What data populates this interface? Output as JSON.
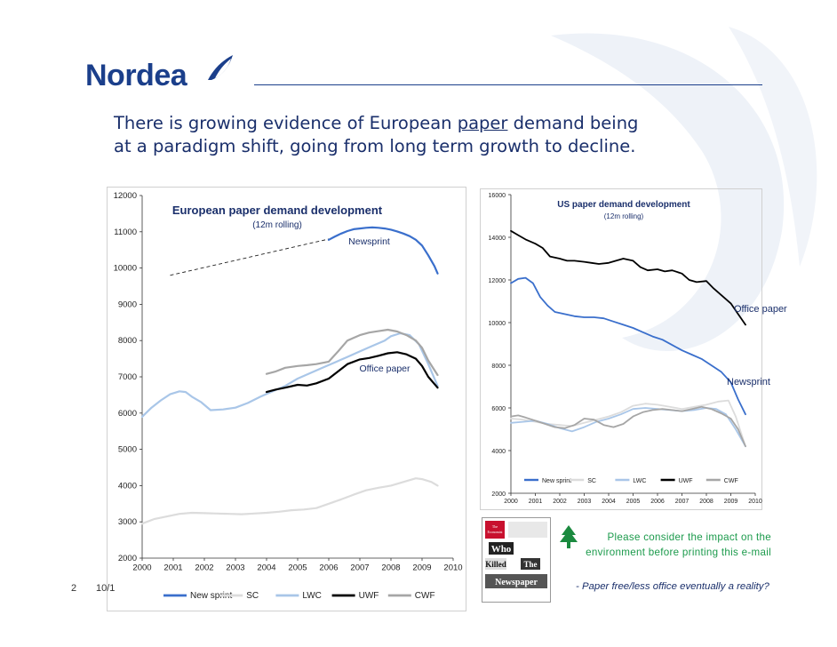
{
  "brand": {
    "name": "Nordea",
    "color": "#1b3f8b",
    "accent": "#ffffff"
  },
  "title": {
    "line1": "There is growing evidence of European ",
    "underlined": "paper",
    "line1_end": " demand being",
    "line2": "at a paradigm shift, going from long term growth to decline."
  },
  "chart_data": [
    {
      "type": "line",
      "title": "European paper demand development",
      "subtitle": "(12m rolling)",
      "xlim": [
        2000,
        2010
      ],
      "ylim": [
        2000,
        12000
      ],
      "xticks": [
        "2000",
        "2001",
        "2002",
        "2003",
        "2004",
        "2005",
        "2006",
        "2007",
        "2008",
        "2009",
        "2010"
      ],
      "yticks": [
        "2000",
        "3000",
        "4000",
        "5000",
        "6000",
        "7000",
        "8000",
        "9000",
        "10000",
        "11000",
        "12000"
      ],
      "annotations": [
        {
          "text": "Newsprint",
          "x": 2007.3,
          "y": 10650
        },
        {
          "text": "Office paper",
          "x": 2007.8,
          "y": 7150
        }
      ],
      "trend_line": {
        "x": [
          2000.9,
          2006.0
        ],
        "y": [
          9800,
          10800
        ]
      },
      "legend": [
        "New sprint",
        "SC",
        "LWC",
        "UWF",
        "CWF"
      ],
      "series": [
        {
          "name": "New sprint",
          "color": "#3a6fcc",
          "x": [
            2006.0,
            2006.2,
            2006.4,
            2006.6,
            2006.8,
            2007.0,
            2007.2,
            2007.4,
            2007.6,
            2007.8,
            2008.0,
            2008.2,
            2008.4,
            2008.6,
            2008.8,
            2009.0,
            2009.2,
            2009.4,
            2009.5
          ],
          "y": [
            10780,
            10870,
            10950,
            11020,
            11070,
            11090,
            11110,
            11120,
            11110,
            11090,
            11060,
            11010,
            10950,
            10880,
            10780,
            10620,
            10350,
            10050,
            9850
          ]
        },
        {
          "name": "SC",
          "color": "#dcdcdc",
          "x": [
            2000.0,
            2000.4,
            2000.8,
            2001.2,
            2001.6,
            2002.0,
            2002.4,
            2002.8,
            2003.2,
            2003.6,
            2004.0,
            2004.4,
            2004.8,
            2005.2,
            2005.6,
            2006.0,
            2006.4,
            2006.8,
            2007.2,
            2007.6,
            2008.0,
            2008.4,
            2008.8,
            2009.0,
            2009.3,
            2009.5
          ],
          "y": [
            2950,
            3080,
            3150,
            3220,
            3250,
            3240,
            3230,
            3220,
            3210,
            3230,
            3250,
            3280,
            3320,
            3340,
            3380,
            3500,
            3620,
            3750,
            3870,
            3940,
            4000,
            4100,
            4200,
            4180,
            4100,
            4000
          ]
        },
        {
          "name": "LWC",
          "color": "#a9c6e8",
          "x": [
            2000.0,
            2000.3,
            2000.6,
            2000.9,
            2001.2,
            2001.4,
            2001.6,
            2001.9,
            2002.2,
            2002.6,
            2003.0,
            2003.4,
            2003.8,
            2004.2,
            2004.6,
            2005.0,
            2005.4,
            2005.8,
            2006.2,
            2006.6,
            2007.0,
            2007.4,
            2007.8,
            2008.0,
            2008.3,
            2008.6,
            2008.9,
            2009.2,
            2009.5
          ],
          "y": [
            5900,
            6150,
            6350,
            6520,
            6600,
            6580,
            6450,
            6300,
            6080,
            6100,
            6150,
            6280,
            6450,
            6600,
            6750,
            6950,
            7100,
            7250,
            7400,
            7550,
            7700,
            7850,
            8000,
            8120,
            8200,
            8150,
            7900,
            7350,
            6750
          ]
        },
        {
          "name": "UWF",
          "color": "#000000",
          "x": [
            2004.0,
            2004.3,
            2004.6,
            2005.0,
            2005.3,
            2005.6,
            2006.0,
            2006.3,
            2006.6,
            2007.0,
            2007.3,
            2007.6,
            2007.9,
            2008.2,
            2008.5,
            2008.8,
            2009.0,
            2009.2,
            2009.5
          ],
          "y": [
            6580,
            6650,
            6700,
            6780,
            6760,
            6820,
            6950,
            7150,
            7350,
            7480,
            7520,
            7580,
            7650,
            7680,
            7620,
            7500,
            7300,
            7000,
            6700
          ]
        },
        {
          "name": "CWF",
          "color": "#a6a6a6",
          "x": [
            2004.0,
            2004.3,
            2004.6,
            2005.0,
            2005.3,
            2005.6,
            2006.0,
            2006.3,
            2006.6,
            2007.0,
            2007.3,
            2007.6,
            2007.9,
            2008.2,
            2008.5,
            2008.8,
            2009.0,
            2009.2,
            2009.5
          ],
          "y": [
            7080,
            7150,
            7250,
            7300,
            7320,
            7350,
            7420,
            7700,
            8000,
            8150,
            8220,
            8260,
            8300,
            8250,
            8150,
            8000,
            7800,
            7450,
            7050
          ]
        }
      ]
    },
    {
      "type": "line",
      "title": "US paper demand development",
      "subtitle": "(12m rolling)",
      "xlim": [
        2000,
        2010
      ],
      "ylim": [
        2000,
        16000
      ],
      "xticks": [
        "2000",
        "2001",
        "2002",
        "2003",
        "2004",
        "2005",
        "2006",
        "2007",
        "2008",
        "2009",
        "2010"
      ],
      "yticks": [
        "2000",
        "4000",
        "6000",
        "8000",
        "10000",
        "12000",
        "14000",
        "16000"
      ],
      "annotations": [
        {
          "text": "Office paper",
          "x": 2010.0,
          "y": 10700
        },
        {
          "text": "Newsprint",
          "x": 2010.0,
          "y": 7100
        }
      ],
      "legend": [
        "New sprint",
        "SC",
        "LWC",
        "UWF",
        "CWF"
      ],
      "series": [
        {
          "name": "New sprint",
          "color": "#3a6fcc",
          "x": [
            2000.0,
            2000.3,
            2000.6,
            2000.9,
            2001.2,
            2001.5,
            2001.8,
            2002.2,
            2002.6,
            2003.0,
            2003.4,
            2003.8,
            2004.2,
            2004.6,
            2005.0,
            2005.4,
            2005.8,
            2006.2,
            2006.6,
            2007.0,
            2007.4,
            2007.8,
            2008.2,
            2008.6,
            2009.0,
            2009.3,
            2009.6
          ],
          "y": [
            11850,
            12050,
            12100,
            11850,
            11200,
            10800,
            10500,
            10400,
            10300,
            10250,
            10250,
            10200,
            10050,
            9900,
            9750,
            9550,
            9350,
            9200,
            8950,
            8700,
            8500,
            8300,
            8000,
            7700,
            7200,
            6400,
            5700
          ]
        },
        {
          "name": "SC",
          "color": "#dcdcdc",
          "x": [
            2000.0,
            2000.5,
            2001.0,
            2001.5,
            2002.0,
            2002.5,
            2003.0,
            2003.5,
            2004.0,
            2004.5,
            2005.0,
            2005.5,
            2006.0,
            2006.5,
            2007.0,
            2007.5,
            2008.0,
            2008.5,
            2008.9,
            2009.2,
            2009.6
          ],
          "y": [
            5500,
            5450,
            5350,
            5250,
            5200,
            5150,
            5300,
            5450,
            5600,
            5800,
            6100,
            6200,
            6150,
            6050,
            5950,
            6050,
            6150,
            6300,
            6350,
            5600,
            4200
          ]
        },
        {
          "name": "LWC",
          "color": "#a9c6e8",
          "x": [
            2000.0,
            2000.5,
            2001.0,
            2001.5,
            2002.0,
            2002.5,
            2003.0,
            2003.5,
            2004.0,
            2004.5,
            2005.0,
            2005.5,
            2006.0,
            2006.5,
            2007.0,
            2007.5,
            2008.0,
            2008.4,
            2008.8,
            2009.2,
            2009.6
          ],
          "y": [
            5300,
            5350,
            5400,
            5250,
            5050,
            4900,
            5100,
            5350,
            5500,
            5700,
            5950,
            6000,
            5950,
            5900,
            5850,
            5900,
            6000,
            5950,
            5700,
            5000,
            4200
          ]
        },
        {
          "name": "UWF",
          "color": "#000000",
          "x": [
            2000.0,
            2000.3,
            2000.6,
            2001.0,
            2001.3,
            2001.6,
            2002.0,
            2002.3,
            2002.6,
            2003.0,
            2003.3,
            2003.6,
            2004.0,
            2004.3,
            2004.6,
            2005.0,
            2005.3,
            2005.6,
            2006.0,
            2006.3,
            2006.6,
            2007.0,
            2007.3,
            2007.6,
            2008.0,
            2008.3,
            2008.6,
            2009.0,
            2009.3,
            2009.6
          ],
          "y": [
            14300,
            14100,
            13900,
            13700,
            13500,
            13100,
            13000,
            12900,
            12900,
            12850,
            12800,
            12750,
            12800,
            12900,
            13000,
            12900,
            12600,
            12450,
            12500,
            12400,
            12450,
            12300,
            12000,
            11900,
            11950,
            11600,
            11300,
            10900,
            10400,
            9900
          ]
        },
        {
          "name": "CWF",
          "color": "#a6a6a6",
          "x": [
            2000.0,
            2000.3,
            2000.6,
            2001.0,
            2001.4,
            2001.8,
            2002.2,
            2002.6,
            2003.0,
            2003.4,
            2003.8,
            2004.2,
            2004.6,
            2005.0,
            2005.4,
            2005.8,
            2006.2,
            2006.6,
            2007.0,
            2007.4,
            2007.8,
            2008.2,
            2008.6,
            2009.0,
            2009.3,
            2009.6
          ],
          "y": [
            5600,
            5650,
            5550,
            5400,
            5250,
            5100,
            5050,
            5200,
            5500,
            5450,
            5200,
            5100,
            5250,
            5600,
            5800,
            5900,
            5950,
            5900,
            5850,
            5950,
            6050,
            5950,
            5750,
            5500,
            5000,
            4200
          ]
        }
      ]
    }
  ],
  "footer": {
    "slide_number": "2",
    "date": "10/1",
    "environment_note": "Please consider the impact on the environment before printing this e-mail",
    "bottom_note": "- Paper free/less office eventually a reality?"
  },
  "economist": {
    "masthead": "The Economist",
    "headline_words": [
      "Who",
      "Killed",
      "The",
      "Newspaper"
    ]
  }
}
